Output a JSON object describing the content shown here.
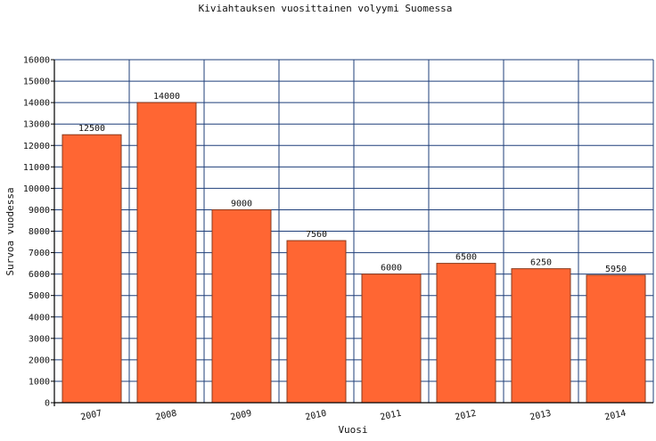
{
  "chart_data": {
    "type": "bar",
    "title": "Kiviahtauksen vuosittainen volyymi Suomessa",
    "xlabel": "Vuosi",
    "ylabel": "Survoa vuodessa",
    "categories": [
      "2007",
      "2008",
      "2009",
      "2010",
      "2011",
      "2012",
      "2013",
      "2014"
    ],
    "values": [
      12500,
      14000,
      9000,
      7560,
      6000,
      6500,
      6250,
      5950
    ],
    "value_labels": [
      "12500",
      "14000",
      "9000",
      "7560",
      "6000",
      "6500",
      "6250",
      "5950"
    ],
    "ylim": [
      0,
      16000
    ],
    "y_ticks": [
      "0",
      "1000",
      "2000",
      "3000",
      "4000",
      "5000",
      "6000",
      "7000",
      "8000",
      "9000",
      "10000",
      "11000",
      "12000",
      "13000",
      "14000",
      "15000",
      "16000"
    ],
    "grid": true,
    "legend": "none",
    "colors": {
      "bar": "#ff6633",
      "bar_edge": "#8a3a1c",
      "grid": "#1f3f7a",
      "axis": "#000000"
    }
  }
}
